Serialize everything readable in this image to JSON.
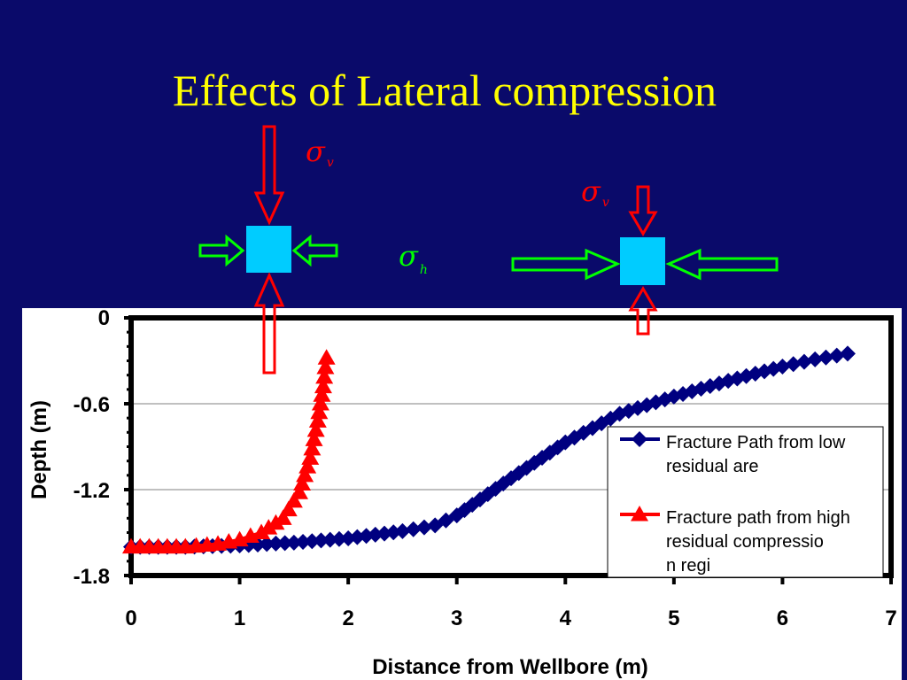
{
  "slide": {
    "title": "Effects of Lateral compression",
    "title_color": "#ffff00",
    "background": "#0a0a6a"
  },
  "diagram": {
    "left": {
      "sigma_v_label": "σ",
      "sigma_v_sub": "v",
      "sigma_h_label": "σ",
      "sigma_h_sub": "h",
      "vertical_arrows": "long",
      "horizontal_arrows": "short"
    },
    "right": {
      "sigma_v_label": "σ",
      "sigma_v_sub": "v",
      "vertical_arrows": "short",
      "horizontal_arrows": "long"
    },
    "colors": {
      "vertical_arrow": "#ff0000",
      "horizontal_arrow": "#00ff00",
      "block": "#00ccff",
      "sigma_v": "#ff0000",
      "sigma_h": "#00ff00"
    }
  },
  "chart_data": {
    "type": "line",
    "xlabel": "Distance from Wellbore (m)",
    "ylabel": "Depth (m)",
    "xlim": [
      0,
      7
    ],
    "ylim": [
      -1.8,
      0
    ],
    "x_ticks": [
      "0",
      "1",
      "2",
      "3",
      "4",
      "5",
      "6",
      "7"
    ],
    "y_ticks": [
      "0",
      "-0.6",
      "-1.2",
      "-1.8"
    ],
    "grid": "horizontal",
    "legend_position": "lower-right",
    "series": [
      {
        "name": "Fracture Path from low residual area",
        "color": "#000080",
        "marker": "diamond",
        "points": [
          [
            0,
            -1.6
          ],
          [
            0.5,
            -1.6
          ],
          [
            1.0,
            -1.59
          ],
          [
            1.5,
            -1.57
          ],
          [
            2.0,
            -1.54
          ],
          [
            2.5,
            -1.49
          ],
          [
            2.8,
            -1.45
          ],
          [
            3.0,
            -1.38
          ],
          [
            3.5,
            -1.12
          ],
          [
            4.0,
            -0.87
          ],
          [
            4.5,
            -0.67
          ],
          [
            5.0,
            -0.55
          ],
          [
            5.5,
            -0.44
          ],
          [
            6.0,
            -0.34
          ],
          [
            6.3,
            -0.29
          ],
          [
            6.6,
            -0.25
          ]
        ]
      },
      {
        "name": "Fracture path from high residual compression region",
        "color": "#ff0000",
        "marker": "triangle",
        "points": [
          [
            0,
            -1.6
          ],
          [
            0.5,
            -1.6
          ],
          [
            0.8,
            -1.58
          ],
          [
            1.0,
            -1.55
          ],
          [
            1.2,
            -1.5
          ],
          [
            1.4,
            -1.4
          ],
          [
            1.55,
            -1.22
          ],
          [
            1.65,
            -0.98
          ],
          [
            1.72,
            -0.72
          ],
          [
            1.77,
            -0.48
          ],
          [
            1.8,
            -0.28
          ]
        ]
      }
    ]
  }
}
